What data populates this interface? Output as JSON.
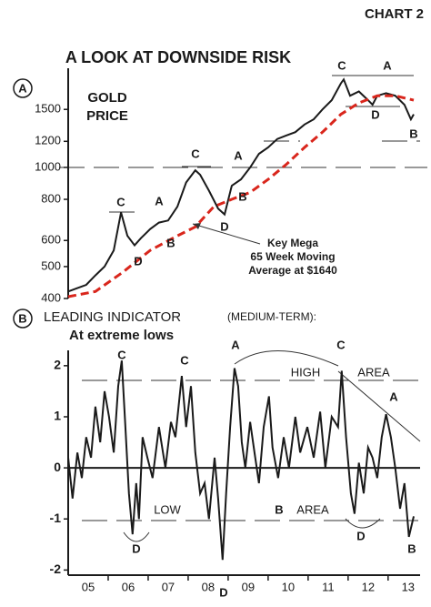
{
  "header": "CHART 2",
  "chart_data": [
    {
      "type": "line",
      "title": "A LOOK AT DOWNSIDE RISK",
      "panel": "A",
      "label": [
        "GOLD",
        "PRICE"
      ],
      "log": true,
      "ylim": [
        400,
        2000
      ],
      "yticks": [
        400,
        500,
        600,
        800,
        1000,
        1200,
        1500
      ],
      "xlim": [
        5,
        13.8
      ],
      "series": [
        {
          "name": "Gold",
          "color": "#1a1a1a",
          "x": [
            5.0,
            5.23,
            5.45,
            5.68,
            5.91,
            6.14,
            6.32,
            6.48,
            6.66,
            6.82,
            7.05,
            7.27,
            7.5,
            7.73,
            7.95,
            8.18,
            8.3,
            8.52,
            8.75,
            8.91,
            9.09,
            9.32,
            9.55,
            9.77,
            10.0,
            10.23,
            10.45,
            10.68,
            10.91,
            11.14,
            11.36,
            11.59,
            11.82,
            11.89,
            12.05,
            12.27,
            12.5,
            12.61,
            12.73,
            12.95,
            13.18,
            13.41,
            13.57,
            13.64
          ],
          "values": [
            420,
            430,
            440,
            470,
            500,
            560,
            730,
            620,
            580,
            610,
            650,
            680,
            690,
            760,
            900,
            980,
            950,
            850,
            750,
            720,
            880,
            920,
            1000,
            1100,
            1150,
            1220,
            1250,
            1280,
            1350,
            1400,
            1500,
            1600,
            1800,
            1850,
            1650,
            1700,
            1600,
            1550,
            1650,
            1680,
            1650,
            1550,
            1400,
            1450
          ]
        },
        {
          "name": "65 Week Moving Average",
          "color": "#d9261c",
          "dashed": true,
          "x": [
            5.0,
            5.68,
            6.36,
            7.05,
            7.73,
            8.18,
            8.64,
            9.09,
            9.55,
            10.0,
            10.45,
            10.91,
            11.36,
            11.82,
            12.27,
            12.73,
            13.18,
            13.64
          ],
          "values": [
            405,
            420,
            480,
            560,
            620,
            660,
            760,
            800,
            840,
            920,
            1020,
            1150,
            1280,
            1450,
            1570,
            1650,
            1650,
            1600
          ]
        }
      ],
      "annotations": [
        "C",
        "A",
        "D",
        "B",
        "C",
        "A",
        "D",
        "B",
        "C",
        "A",
        "D",
        "B"
      ],
      "callout": [
        "Key Mega",
        "65 Week Moving",
        "Average at $1640"
      ]
    },
    {
      "type": "line",
      "panel": "B",
      "title": "LEADING INDICATOR",
      "subtitle": "(MEDIUM-TERM):",
      "note": "At extreme lows",
      "ylim": [
        -2.1,
        2.3
      ],
      "yticks": [
        -2,
        -1,
        0,
        1,
        2
      ],
      "xlim": [
        5,
        13.8
      ],
      "xticks": [
        {
          "value": 5.5,
          "label": "05"
        },
        {
          "value": 6.5,
          "label": "06"
        },
        {
          "value": 7.5,
          "label": "07"
        },
        {
          "value": 8.5,
          "label": "08"
        },
        {
          "value": 9.5,
          "label": "09"
        },
        {
          "value": 10.5,
          "label": "10"
        },
        {
          "value": 11.5,
          "label": "11"
        },
        {
          "value": 12.5,
          "label": "12"
        },
        {
          "value": 13.5,
          "label": "13"
        }
      ],
      "series": [
        {
          "name": "Indicator",
          "color": "#1a1a1a",
          "x": [
            5.0,
            5.11,
            5.23,
            5.34,
            5.45,
            5.57,
            5.68,
            5.8,
            5.91,
            6.02,
            6.14,
            6.25,
            6.34,
            6.43,
            6.52,
            6.61,
            6.7,
            6.77,
            6.86,
            6.98,
            7.11,
            7.27,
            7.43,
            7.57,
            7.68,
            7.84,
            7.95,
            8.07,
            8.18,
            8.3,
            8.41,
            8.52,
            8.66,
            8.75,
            8.86,
            8.95,
            9.05,
            9.16,
            9.25,
            9.34,
            9.43,
            9.55,
            9.66,
            9.77,
            9.89,
            10.02,
            10.11,
            10.25,
            10.39,
            10.52,
            10.68,
            10.8,
            10.98,
            11.14,
            11.3,
            11.43,
            11.59,
            11.75,
            11.84,
            11.95,
            12.07,
            12.16,
            12.27,
            12.39,
            12.5,
            12.61,
            12.73,
            12.84,
            12.95,
            13.07,
            13.18,
            13.3,
            13.41,
            13.52,
            13.64
          ],
          "values": [
            0.2,
            -0.6,
            0.3,
            -0.2,
            0.6,
            0.2,
            1.2,
            0.5,
            1.5,
            1.0,
            0.3,
            1.6,
            2.1,
            0.8,
            -0.5,
            -1.3,
            -0.3,
            -1.0,
            0.6,
            0.2,
            -0.2,
            0.8,
            0.0,
            0.9,
            0.6,
            1.8,
            0.8,
            1.6,
            0.3,
            -0.5,
            -0.3,
            -1.0,
            0.2,
            -0.6,
            -1.8,
            -0.5,
            0.8,
            1.95,
            1.6,
            0.5,
            0.0,
            0.9,
            0.3,
            -0.3,
            0.8,
            1.4,
            0.4,
            -0.2,
            0.6,
            0.0,
            1.0,
            0.3,
            0.8,
            0.2,
            1.1,
            0.0,
            1.0,
            0.8,
            1.9,
            0.6,
            -0.5,
            -0.9,
            0.1,
            -0.5,
            0.4,
            0.2,
            -0.2,
            0.6,
            1.05,
            0.6,
            0.0,
            -0.8,
            -0.3,
            -1.35,
            -0.95
          ]
        }
      ],
      "annotations": [
        "C",
        "C",
        "A",
        "HIGH",
        "AREA",
        "C",
        "A",
        "LOW",
        "B",
        "AREA",
        "D",
        "D",
        "D",
        "B"
      ]
    }
  ]
}
